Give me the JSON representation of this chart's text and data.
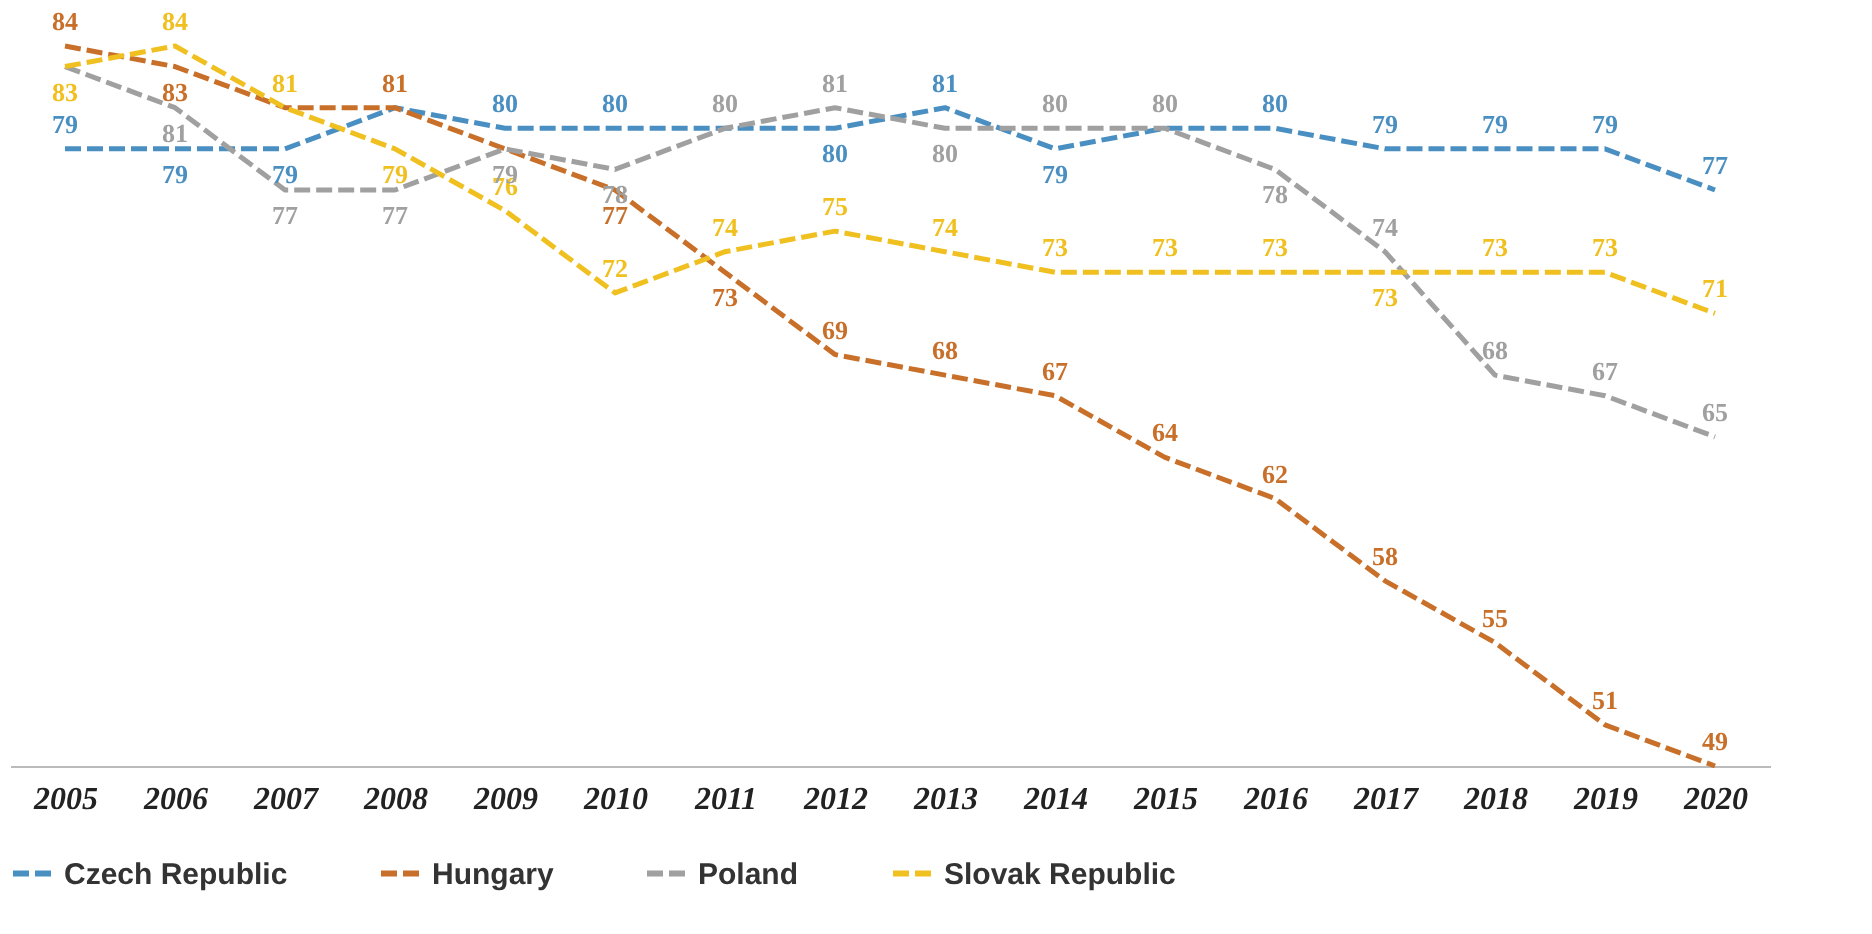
{
  "chart_data": {
    "type": "line",
    "categories": [
      "2005",
      "2006",
      "2007",
      "2008",
      "2009",
      "2010",
      "2011",
      "2012",
      "2013",
      "2014",
      "2015",
      "2016",
      "2017",
      "2018",
      "2019",
      "2020"
    ],
    "tick_labels": "x",
    "legend": "bottom",
    "line_style": "dashed",
    "marker": "none",
    "grid": false,
    "series": [
      {
        "name": "Czech Republic",
        "color": "#4a8fc1",
        "values": [
          79,
          79,
          79,
          81,
          80,
          80,
          80,
          80,
          81,
          79,
          80,
          80,
          79,
          79,
          79,
          77
        ],
        "value_labels": [
          "79",
          "79",
          "79",
          null,
          "80",
          "80",
          null,
          "80",
          "81",
          "79",
          null,
          "80",
          "79",
          "79",
          "79",
          "77"
        ]
      },
      {
        "name": "Hungary",
        "color": "#c8702a",
        "values": [
          84,
          83,
          81,
          81,
          79,
          77,
          73,
          69,
          68,
          67,
          64,
          62,
          58,
          55,
          51,
          49
        ],
        "value_labels": [
          "84",
          "83",
          null,
          "81",
          null,
          "77",
          "73",
          "69",
          "68",
          "67",
          "64",
          "62",
          "58",
          "55",
          "51",
          "49"
        ]
      },
      {
        "name": "Poland",
        "color": "#a0a0a0",
        "values": [
          83,
          81,
          77,
          77,
          79,
          78,
          80,
          81,
          80,
          80,
          80,
          78,
          74,
          68,
          67,
          65
        ],
        "value_labels": [
          null,
          "81",
          "77",
          "77",
          "79",
          "78",
          "80",
          "81",
          "80",
          "80",
          "80",
          "78",
          "74",
          "68",
          "67",
          "65"
        ]
      },
      {
        "name": "Slovak Republic",
        "color": "#f0c020",
        "values": [
          83,
          84,
          81,
          79,
          76,
          72,
          74,
          75,
          74,
          73,
          73,
          73,
          73,
          73,
          73,
          71
        ],
        "value_labels": [
          "83",
          "84",
          "81",
          "79",
          "76",
          "72",
          "74",
          "75",
          "74",
          "73",
          "73",
          "73",
          "73",
          "73",
          "73",
          "71"
        ]
      }
    ]
  }
}
